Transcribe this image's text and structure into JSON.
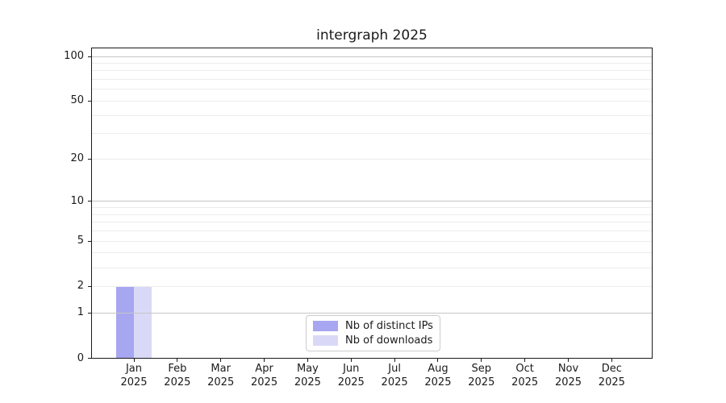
{
  "figure": {
    "title": "intergraph 2025"
  },
  "chart_data": {
    "type": "bar",
    "title": "intergraph 2025",
    "x_months": [
      "Jan",
      "Feb",
      "Mar",
      "Apr",
      "May",
      "Jun",
      "Jul",
      "Aug",
      "Sep",
      "Oct",
      "Nov",
      "Dec"
    ],
    "x_year": "2025",
    "series": [
      {
        "name": "Nb of distinct IPs",
        "color": "#a6a6f1",
        "values": [
          2,
          0,
          0,
          0,
          0,
          0,
          0,
          0,
          0,
          0,
          0,
          0
        ]
      },
      {
        "name": "Nb of downloads",
        "color": "#d9d9f7",
        "values": [
          2,
          0,
          0,
          0,
          0,
          0,
          0,
          0,
          0,
          0,
          0,
          0
        ]
      }
    ],
    "xlabel": "",
    "ylabel": "",
    "y_scale": "log10(1+y)",
    "ylim": [
      0,
      115
    ],
    "y_tick_values": [
      0,
      1,
      2,
      5,
      10,
      20,
      50,
      100
    ],
    "y_decade_ticks": [
      1,
      10,
      100
    ],
    "y_minor_gridlines": [
      3,
      4,
      6,
      7,
      8,
      9,
      30,
      40,
      60,
      70,
      80,
      90
    ],
    "grid": true,
    "legend_position": "inside-bottom-center",
    "colors": {
      "grid_major": "#c6c6c6",
      "grid_minor": "#ececec",
      "axis": "#1a1a1a",
      "text": "#1a1a1a",
      "background": "#ffffff",
      "legend_border": "#cccccc"
    }
  }
}
